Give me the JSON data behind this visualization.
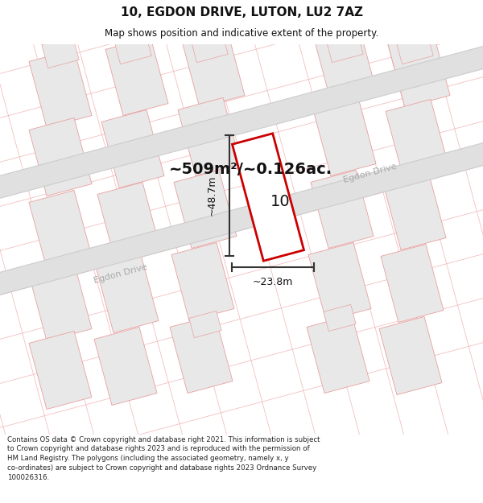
{
  "title": "10, EGDON DRIVE, LUTON, LU2 7AZ",
  "subtitle": "Map shows position and indicative extent of the property.",
  "area_label": "~509m²/~0.126ac.",
  "property_number": "10",
  "dim_height": "~48.7m",
  "dim_width": "~23.8m",
  "road_label_lower": "Egdon Drive",
  "road_label_upper": "Egdon Drive",
  "footer_line1": "Contains OS data © Crown copyright and database right 2021. This information is subject",
  "footer_line2": "to Crown copyright and database rights 2023 and is reproduced with the permission of",
  "footer_line3": "HM Land Registry. The polygons (including the associated geometry, namely x, y",
  "footer_line4": "co-ordinates) are subject to Crown copyright and database rights 2023 Ordnance Survey",
  "footer_line5": "100026316.",
  "bg_color": "#ffffff",
  "road_fill": "#e0e0e0",
  "road_edge": "#cccccc",
  "building_fill": "#e8e8e8",
  "building_edge": "#e8a0a0",
  "plot_line_fill": "#f5d0d0",
  "highlight_edge": "#cc0000",
  "highlight_fill": "#ffffff",
  "dim_color": "#333333",
  "text_color": "#111111",
  "road_text_color": "#aaaaaa",
  "ang": -30
}
